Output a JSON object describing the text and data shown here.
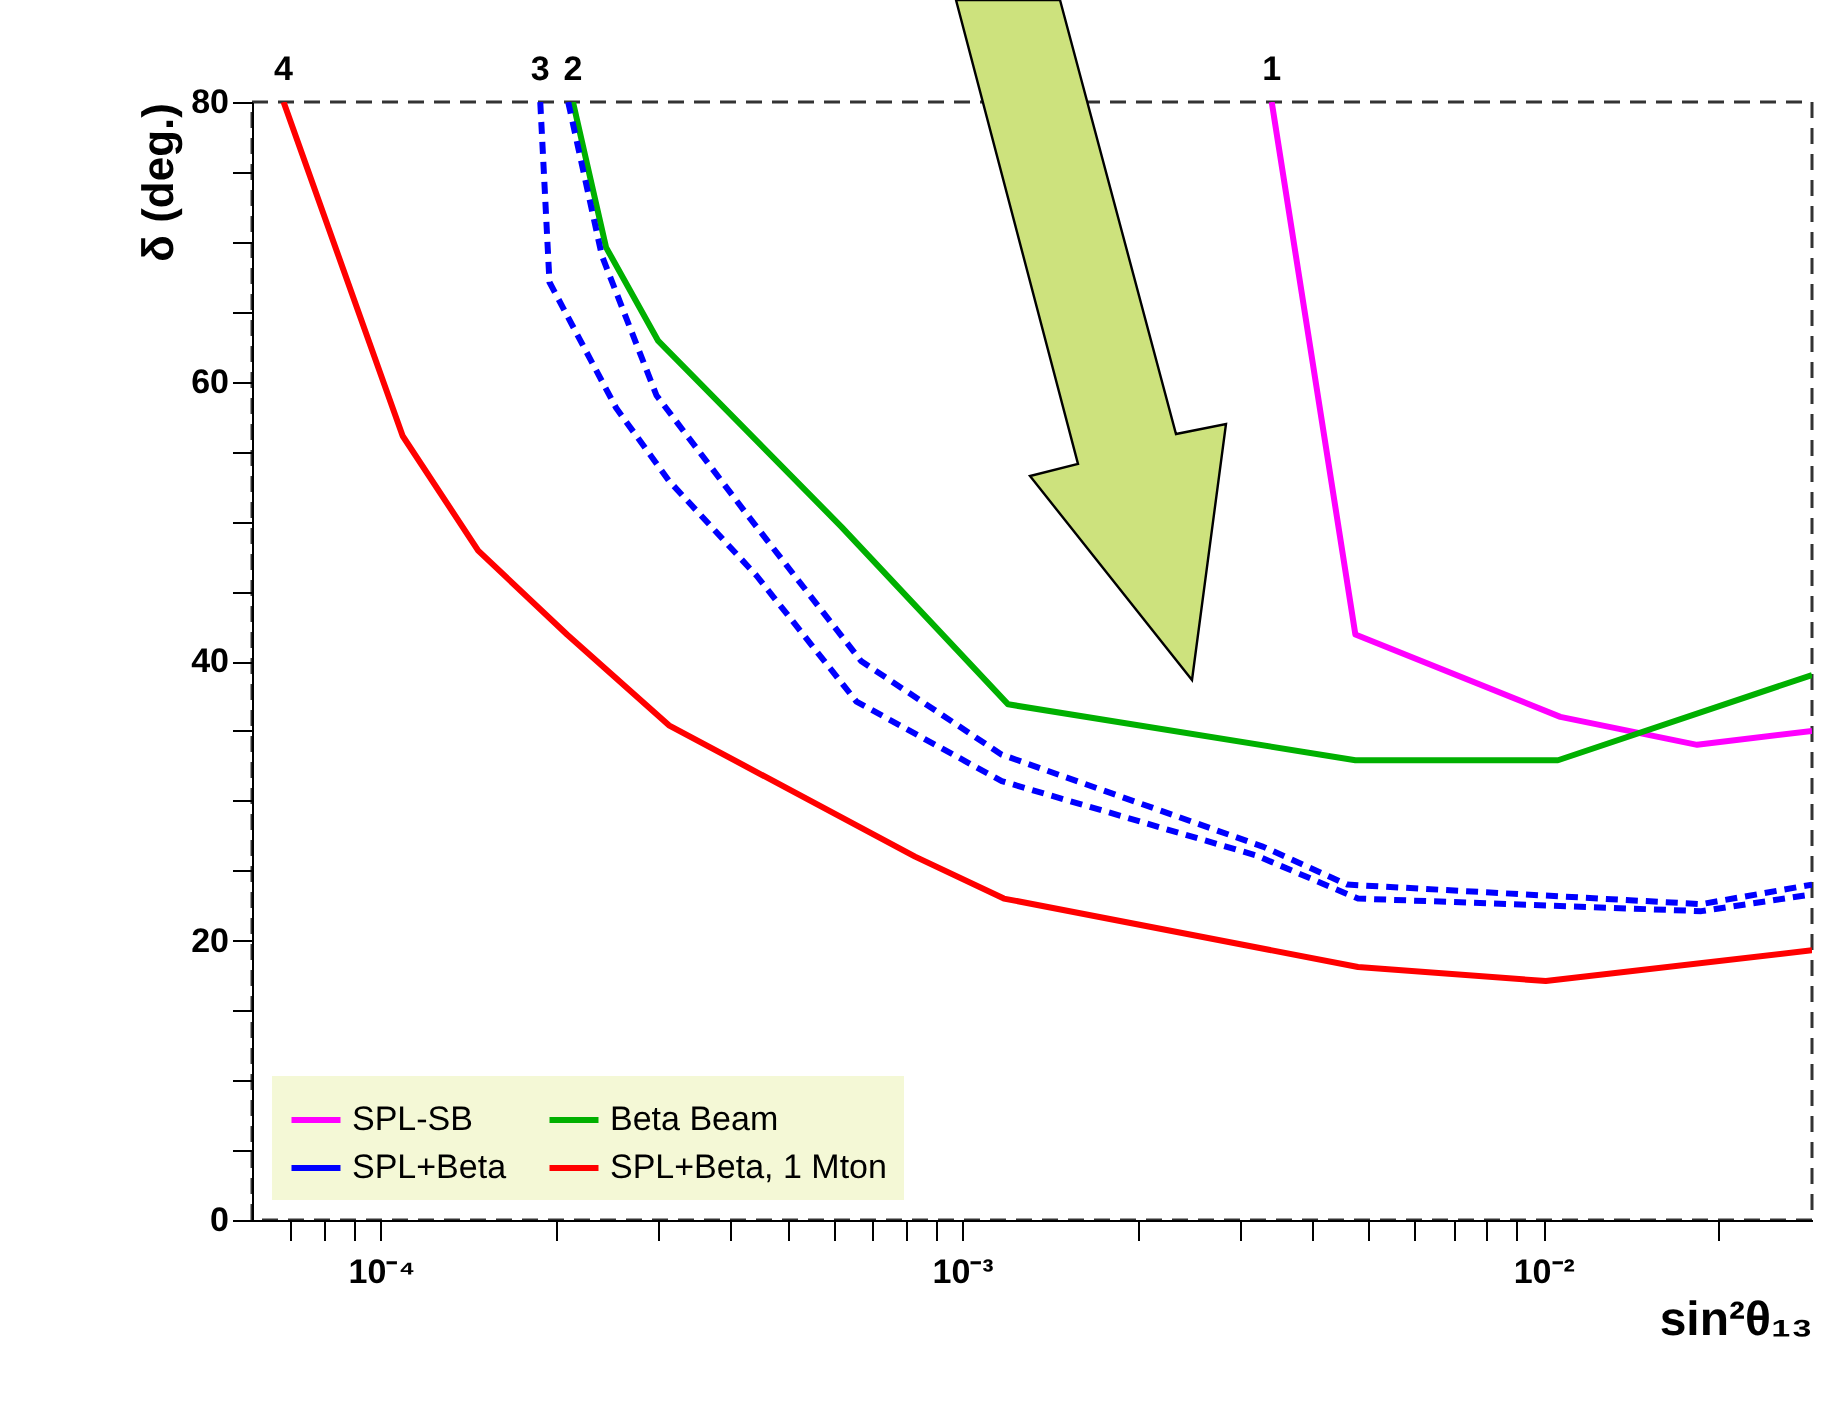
{
  "chart_data": {
    "type": "line",
    "xlabel": "sin²θ₁₃",
    "ylabel": "δ (deg.)",
    "log": "x",
    "xlim": [
      6e-05,
      0.029
    ],
    "ylim": [
      0,
      80
    ],
    "xticks": [
      {
        "value": 7e-05,
        "label": null
      },
      {
        "value": 8e-05,
        "label": null
      },
      {
        "value": 9e-05,
        "label": null
      },
      {
        "value": 0.0001,
        "label": "10⁻⁴"
      },
      {
        "value": 0.0002,
        "label": null
      },
      {
        "value": 0.0003,
        "label": null
      },
      {
        "value": 0.0004,
        "label": null
      },
      {
        "value": 0.0005,
        "label": null
      },
      {
        "value": 0.0006,
        "label": null
      },
      {
        "value": 0.0007,
        "label": null
      },
      {
        "value": 0.0008,
        "label": null
      },
      {
        "value": 0.0009,
        "label": null
      },
      {
        "value": 0.001,
        "label": "10⁻³"
      },
      {
        "value": 0.002,
        "label": null
      },
      {
        "value": 0.003,
        "label": null
      },
      {
        "value": 0.004,
        "label": null
      },
      {
        "value": 0.005,
        "label": null
      },
      {
        "value": 0.006,
        "label": null
      },
      {
        "value": 0.007,
        "label": null
      },
      {
        "value": 0.008,
        "label": null
      },
      {
        "value": 0.009,
        "label": null
      },
      {
        "value": 0.01,
        "label": "10⁻²"
      },
      {
        "value": 0.02,
        "label": null
      }
    ],
    "yticks": [
      0,
      {
        "value": 5,
        "label": null
      },
      {
        "value": 10,
        "label": null
      },
      {
        "value": 15,
        "label": null
      },
      20,
      {
        "value": 25,
        "label": null
      },
      {
        "value": 30,
        "label": null
      },
      {
        "value": 35,
        "label": null
      },
      40,
      {
        "value": 45,
        "label": null
      },
      {
        "value": 50,
        "label": null
      },
      {
        "value": 55,
        "label": null
      },
      60,
      {
        "value": 65,
        "label": null
      },
      {
        "value": 70,
        "label": null
      },
      {
        "value": 75,
        "label": null
      },
      80
    ],
    "grid": false,
    "legend": "bottom left",
    "series": [
      {
        "name": "SPL-SB",
        "color": "#ff00ff",
        "x": [
          0.00341,
          0.00475,
          0.0107,
          0.0184,
          0.029
        ],
        "values": [
          80,
          41.9,
          36,
          34,
          35
        ]
      },
      {
        "name": "Beta Beam",
        "color": "#00b000",
        "x": [
          0.000214,
          0.000244,
          0.0003,
          0.00062,
          0.0012,
          0.00475,
          0.0106,
          0.029
        ],
        "values": [
          80,
          69.6,
          62.9,
          49.6,
          36.9,
          32.9,
          32.9,
          39
        ]
      },
      {
        "name": "SPL+Beta",
        "color": "#0000ff",
        "line_style": "dashed",
        "x": [
          0.000188,
          0.000195,
          0.000254,
          0.000313,
          0.000443,
          0.000658,
          0.00117,
          0.0032,
          0.0048,
          0.0187,
          0.029
        ],
        "values": [
          80,
          67.1,
          58.1,
          52.9,
          46.1,
          37.1,
          31.4,
          26.1,
          23,
          22.1,
          23.3
        ]
      },
      {
        "color": "#0000ff",
        "line_style": "dashed",
        "x": [
          0.00021,
          0.00024,
          0.000298,
          0.000428,
          0.00067,
          0.00117,
          0.0033,
          0.0046,
          0.0187,
          0.029
        ],
        "values": [
          80,
          69,
          59,
          50.4,
          40,
          33.3,
          26.7,
          24,
          22.6,
          24
        ]
      },
      {
        "name": "SPL+Beta, 1 Mton",
        "color": "#ff0000",
        "x": [
          6.8e-05,
          0.000109,
          0.000147,
          0.000209,
          0.000313,
          0.00083,
          0.00118,
          0.0048,
          0.0101,
          0.029
        ],
        "values": [
          80,
          56.1,
          47.9,
          41.9,
          35.4,
          26,
          23,
          18.1,
          17.1,
          19.3
        ]
      }
    ],
    "annotations": [
      {
        "text": "4",
        "x": 6.8e-05,
        "y": 80
      },
      {
        "text": "3",
        "x": 0.000188,
        "y": 80
      },
      {
        "text": "2",
        "x": 0.000214,
        "y": 80
      },
      {
        "text": "1",
        "x": 0.00341,
        "y": 80
      }
    ]
  }
}
